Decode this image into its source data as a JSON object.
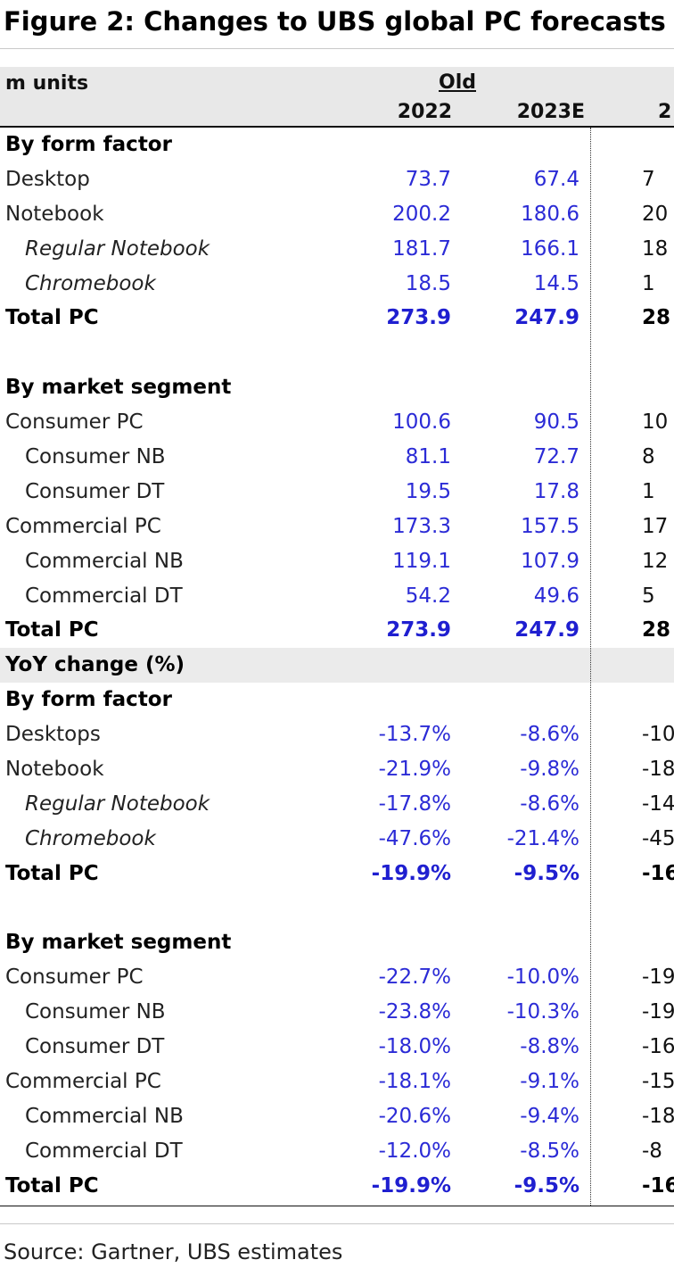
{
  "title": "Figure 2: Changes to UBS global PC forecasts",
  "header": {
    "units": "m units",
    "group": "Old",
    "years": [
      "2022",
      "2023E",
      "2"
    ]
  },
  "rows": [
    {
      "label": "By form factor",
      "kind": "section"
    },
    {
      "label": "Desktop",
      "values": [
        "73.7",
        "67.4",
        "7"
      ]
    },
    {
      "label": "Notebook",
      "values": [
        "200.2",
        "180.6",
        "20"
      ]
    },
    {
      "label": "Regular Notebook",
      "kind": "sub-italic",
      "values": [
        "181.7",
        "166.1",
        "18"
      ]
    },
    {
      "label": "Chromebook",
      "kind": "sub-italic",
      "values": [
        "18.5",
        "14.5",
        "1"
      ]
    },
    {
      "label": "Total PC",
      "kind": "total",
      "values": [
        "273.9",
        "247.9",
        "28"
      ]
    },
    {
      "label": "",
      "kind": "blank"
    },
    {
      "label": "By market segment",
      "kind": "section"
    },
    {
      "label": "Consumer PC",
      "values": [
        "100.6",
        "90.5",
        "10"
      ]
    },
    {
      "label": "Consumer NB",
      "kind": "sub",
      "values": [
        "81.1",
        "72.7",
        "8"
      ]
    },
    {
      "label": "Consumer DT",
      "kind": "sub",
      "values": [
        "19.5",
        "17.8",
        "1"
      ]
    },
    {
      "label": "Commercial PC",
      "values": [
        "173.3",
        "157.5",
        "17"
      ]
    },
    {
      "label": "Commercial NB",
      "kind": "sub",
      "values": [
        "119.1",
        "107.9",
        "12"
      ]
    },
    {
      "label": "Commercial DT",
      "kind": "sub",
      "values": [
        "54.2",
        "49.6",
        "5"
      ]
    },
    {
      "label": "Total PC",
      "kind": "total",
      "values": [
        "273.9",
        "247.9",
        "28"
      ]
    },
    {
      "label": "YoY change (%)",
      "kind": "section-shaded"
    },
    {
      "label": "By form factor",
      "kind": "section"
    },
    {
      "label": "Desktops",
      "values": [
        "-13.7%",
        "-8.6%",
        "-10"
      ]
    },
    {
      "label": "Notebook",
      "values": [
        "-21.9%",
        "-9.8%",
        "-18"
      ]
    },
    {
      "label": "Regular Notebook",
      "kind": "sub-italic",
      "values": [
        "-17.8%",
        "-8.6%",
        "-14"
      ]
    },
    {
      "label": "Chromebook",
      "kind": "sub-italic",
      "values": [
        "-47.6%",
        "-21.4%",
        "-45"
      ]
    },
    {
      "label": "Total PC",
      "kind": "total",
      "values": [
        "-19.9%",
        "-9.5%",
        "-16"
      ]
    },
    {
      "label": "",
      "kind": "blank"
    },
    {
      "label": "By market segment",
      "kind": "section"
    },
    {
      "label": "Consumer PC",
      "values": [
        "-22.7%",
        "-10.0%",
        "-19"
      ]
    },
    {
      "label": "Consumer NB",
      "kind": "sub",
      "values": [
        "-23.8%",
        "-10.3%",
        "-19"
      ]
    },
    {
      "label": "Consumer DT",
      "kind": "sub",
      "values": [
        "-18.0%",
        "-8.8%",
        "-16"
      ]
    },
    {
      "label": "Commercial PC",
      "values": [
        "-18.1%",
        "-9.1%",
        "-15"
      ]
    },
    {
      "label": "Commercial NB",
      "kind": "sub",
      "values": [
        "-20.6%",
        "-9.4%",
        "-18"
      ]
    },
    {
      "label": "Commercial DT",
      "kind": "sub",
      "values": [
        "-12.0%",
        "-8.5%",
        "-8"
      ]
    },
    {
      "label": "Total PC",
      "kind": "total",
      "values": [
        "-19.9%",
        "-9.5%",
        "-16"
      ]
    }
  ],
  "source": "Source: Gartner, UBS estimates",
  "colors": {
    "value_text": "#2b2bd6",
    "header_band": "#e8e8e8",
    "shaded_row": "#ebebeb"
  }
}
